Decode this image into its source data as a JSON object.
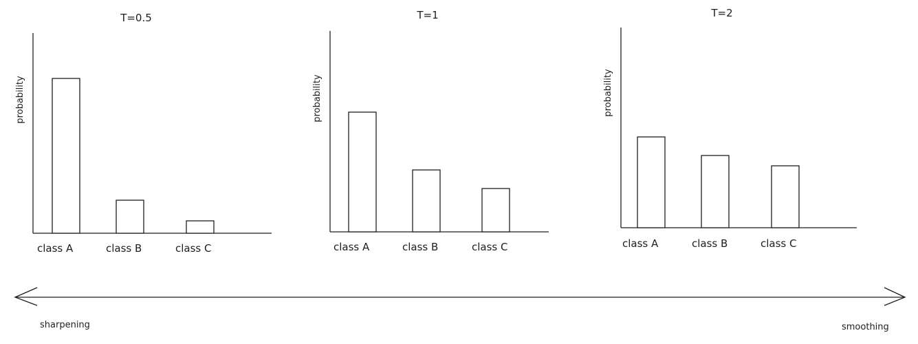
{
  "chart_data": [
    {
      "type": "bar",
      "title": "T=0.5",
      "ylabel": "probability",
      "categories": [
        "class A",
        "class B",
        "class C"
      ],
      "values": [
        0.75,
        0.16,
        0.06
      ],
      "ylim": [
        0,
        1
      ]
    },
    {
      "type": "bar",
      "title": "T=1",
      "ylabel": "probability",
      "categories": [
        "class A",
        "class B",
        "class C"
      ],
      "values": [
        0.58,
        0.3,
        0.21
      ],
      "ylim": [
        0,
        1
      ]
    },
    {
      "type": "bar",
      "title": "T=2",
      "ylabel": "probability",
      "categories": [
        "class A",
        "class B",
        "class C"
      ],
      "values": [
        0.44,
        0.35,
        0.3
      ],
      "ylim": [
        0,
        1
      ]
    }
  ],
  "spectrum": {
    "left_label": "sharpening",
    "right_label": "smoothing"
  },
  "colors": {
    "stroke": "#1e1e1e",
    "background": "#ffffff"
  }
}
